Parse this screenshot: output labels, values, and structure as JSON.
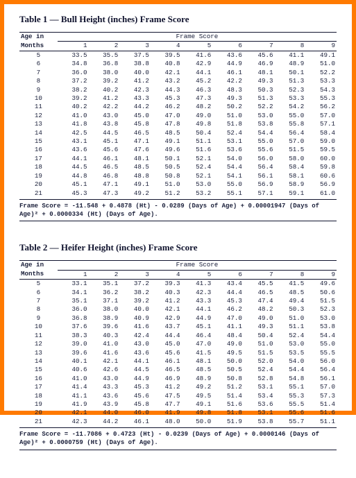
{
  "tables": [
    {
      "title": "Table 1 — Bull Height (inches) Frame Score",
      "age_header_1": "Age in",
      "age_header_2": "Months",
      "fs_header": "Frame Score",
      "score_cols": [
        "1",
        "2",
        "3",
        "4",
        "5",
        "6",
        "7",
        "8",
        "9"
      ],
      "rows": [
        {
          "age": "5",
          "v": [
            "33.5",
            "35.5",
            "37.5",
            "39.5",
            "41.6",
            "43.6",
            "45.6",
            "41.1",
            "49.1"
          ]
        },
        {
          "age": "6",
          "v": [
            "34.8",
            "36.8",
            "38.8",
            "40.8",
            "42.9",
            "44.9",
            "46.9",
            "48.9",
            "51.0"
          ]
        },
        {
          "age": "7",
          "v": [
            "36.0",
            "38.0",
            "40.0",
            "42.1",
            "44.1",
            "46.1",
            "48.1",
            "50.1",
            "52.2"
          ]
        },
        {
          "age": "8",
          "v": [
            "37.2",
            "39.2",
            "41.2",
            "43.2",
            "45.2",
            "42.2",
            "49.3",
            "51.3",
            "53.3"
          ]
        },
        {
          "age": "9",
          "v": [
            "38.2",
            "40.2",
            "42.3",
            "44.3",
            "46.3",
            "48.3",
            "50.3",
            "52.3",
            "54.3"
          ]
        },
        {
          "age": "10",
          "v": [
            "39.2",
            "41.2",
            "43.3",
            "45.3",
            "47.3",
            "49.3",
            "51.3",
            "53.3",
            "55.3"
          ]
        },
        {
          "age": "11",
          "v": [
            "40.2",
            "42.2",
            "44.2",
            "46.2",
            "48.2",
            "50.2",
            "52.2",
            "54.2",
            "56.2"
          ]
        },
        {
          "age": "12",
          "v": [
            "41.0",
            "43.0",
            "45.0",
            "47.0",
            "49.0",
            "51.0",
            "53.0",
            "55.0",
            "57.0"
          ]
        },
        {
          "age": "13",
          "v": [
            "41.8",
            "43.8",
            "45.8",
            "47.8",
            "49.8",
            "51.8",
            "53.8",
            "55.8",
            "57.1"
          ]
        },
        {
          "age": "14",
          "v": [
            "42.5",
            "44.5",
            "46.5",
            "48.5",
            "50.4",
            "52.4",
            "54.4",
            "56.4",
            "58.4"
          ]
        },
        {
          "age": "15",
          "v": [
            "43.1",
            "45.1",
            "47.1",
            "49.1",
            "51.1",
            "53.1",
            "55.0",
            "57.0",
            "59.0"
          ]
        },
        {
          "age": "16",
          "v": [
            "43.6",
            "45.6",
            "47.6",
            "49.6",
            "51.6",
            "53.6",
            "55.6",
            "51.5",
            "59.5"
          ]
        },
        {
          "age": "17",
          "v": [
            "44.1",
            "46.1",
            "48.1",
            "50.1",
            "52.1",
            "54.0",
            "56.0",
            "58.0",
            "60.0"
          ]
        },
        {
          "age": "18",
          "v": [
            "44.5",
            "46.5",
            "48.5",
            "50.5",
            "52.4",
            "54.4",
            "56.4",
            "58.4",
            "59.8"
          ]
        },
        {
          "age": "19",
          "v": [
            "44.8",
            "46.8",
            "48.8",
            "50.8",
            "52.1",
            "54.1",
            "56.1",
            "58.1",
            "60.6"
          ]
        },
        {
          "age": "20",
          "v": [
            "45.1",
            "47.1",
            "49.1",
            "51.0",
            "53.0",
            "55.0",
            "56.9",
            "58.9",
            "56.9"
          ]
        },
        {
          "age": "21",
          "v": [
            "45.3",
            "47.3",
            "49.2",
            "51.2",
            "53.2",
            "55.1",
            "57.1",
            "59.1",
            "61.0"
          ]
        }
      ],
      "footnote": "Frame Score = -11.548 + 0.4878 (Ht) - 0.0289 (Days of Age) + 0.00001947 (Days of Age)² + 0.0000334 (Ht) (Days of Age)."
    },
    {
      "title": "Table 2 — Heifer Height (inches) Frame Score",
      "age_header_1": "Age in",
      "age_header_2": "Months",
      "fs_header": "Frame Score",
      "score_cols": [
        "1",
        "2",
        "3",
        "4",
        "5",
        "6",
        "7",
        "8",
        "9"
      ],
      "rows": [
        {
          "age": "5",
          "v": [
            "33.1",
            "35.1",
            "37.2",
            "39.3",
            "41.3",
            "43.4",
            "45.5",
            "41.5",
            "49.6"
          ]
        },
        {
          "age": "6",
          "v": [
            "34.1",
            "36.2",
            "38.2",
            "40.3",
            "42.3",
            "44.4",
            "46.5",
            "48.5",
            "50.6"
          ]
        },
        {
          "age": "7",
          "v": [
            "35.1",
            "37.1",
            "39.2",
            "41.2",
            "43.3",
            "45.3",
            "47.4",
            "49.4",
            "51.5"
          ]
        },
        {
          "age": "8",
          "v": [
            "36.0",
            "38.0",
            "40.0",
            "42.1",
            "44.1",
            "46.2",
            "48.2",
            "50.3",
            "52.3"
          ]
        },
        {
          "age": "9",
          "v": [
            "36.8",
            "38.9",
            "40.9",
            "42.9",
            "44.9",
            "47.0",
            "49.0",
            "51.0",
            "53.0"
          ]
        },
        {
          "age": "10",
          "v": [
            "37.6",
            "39.6",
            "41.6",
            "43.7",
            "45.1",
            "41.1",
            "49.3",
            "51.1",
            "53.8"
          ]
        },
        {
          "age": "11",
          "v": [
            "38.3",
            "40.3",
            "42.4",
            "44.4",
            "46.4",
            "48.4",
            "50.4",
            "52.4",
            "54.4"
          ]
        },
        {
          "age": "12",
          "v": [
            "39.0",
            "41.0",
            "43.0",
            "45.0",
            "47.0",
            "49.0",
            "51.0",
            "53.0",
            "55.0"
          ]
        },
        {
          "age": "13",
          "v": [
            "39.6",
            "41.6",
            "43.6",
            "45.6",
            "41.5",
            "49.5",
            "51.5",
            "53.5",
            "55.5"
          ]
        },
        {
          "age": "14",
          "v": [
            "40.1",
            "42.1",
            "44.1",
            "46.1",
            "48.1",
            "50.0",
            "52.0",
            "54.0",
            "56.0"
          ]
        },
        {
          "age": "15",
          "v": [
            "40.6",
            "42.6",
            "44.5",
            "46.5",
            "48.5",
            "50.5",
            "52.4",
            "54.4",
            "56.4"
          ]
        },
        {
          "age": "16",
          "v": [
            "41.0",
            "43.0",
            "44.9",
            "46.9",
            "48.9",
            "50.8",
            "52.8",
            "54.8",
            "56.1"
          ]
        },
        {
          "age": "17",
          "v": [
            "41.4",
            "43.3",
            "45.3",
            "41.2",
            "49.2",
            "51.2",
            "53.1",
            "55.1",
            "57.0"
          ]
        },
        {
          "age": "18",
          "v": [
            "41.1",
            "43.6",
            "45.6",
            "47.5",
            "49.5",
            "51.4",
            "53.4",
            "55.3",
            "57.3"
          ]
        },
        {
          "age": "19",
          "v": [
            "41.9",
            "43.9",
            "45.8",
            "47.7",
            "49.1",
            "51.6",
            "53.6",
            "55.5",
            "51.4"
          ]
        },
        {
          "age": "20",
          "v": [
            "42.1",
            "44.0",
            "46.0",
            "41.9",
            "49.8",
            "51.8",
            "53.1",
            "55.6",
            "51.6"
          ]
        },
        {
          "age": "21",
          "v": [
            "42.3",
            "44.2",
            "46.1",
            "48.0",
            "50.0",
            "51.9",
            "53.8",
            "55.7",
            "51.1"
          ]
        }
      ],
      "footnote": "Frame Score = -11.7086 + 0.4723 (Ht) - 0.0239 (Days of Age) + 0.0000146 (Days of Age)² + 0.0000759 (Ht) (Days of Age)."
    }
  ],
  "colors": {
    "border": "#ff7a00",
    "text": "#10132e",
    "rule": "#10132e",
    "background": "#ffffff"
  },
  "fonts": {
    "body": "Courier New",
    "title": "Times New Roman",
    "title_size_pt": 13,
    "body_size_pt": 9
  }
}
